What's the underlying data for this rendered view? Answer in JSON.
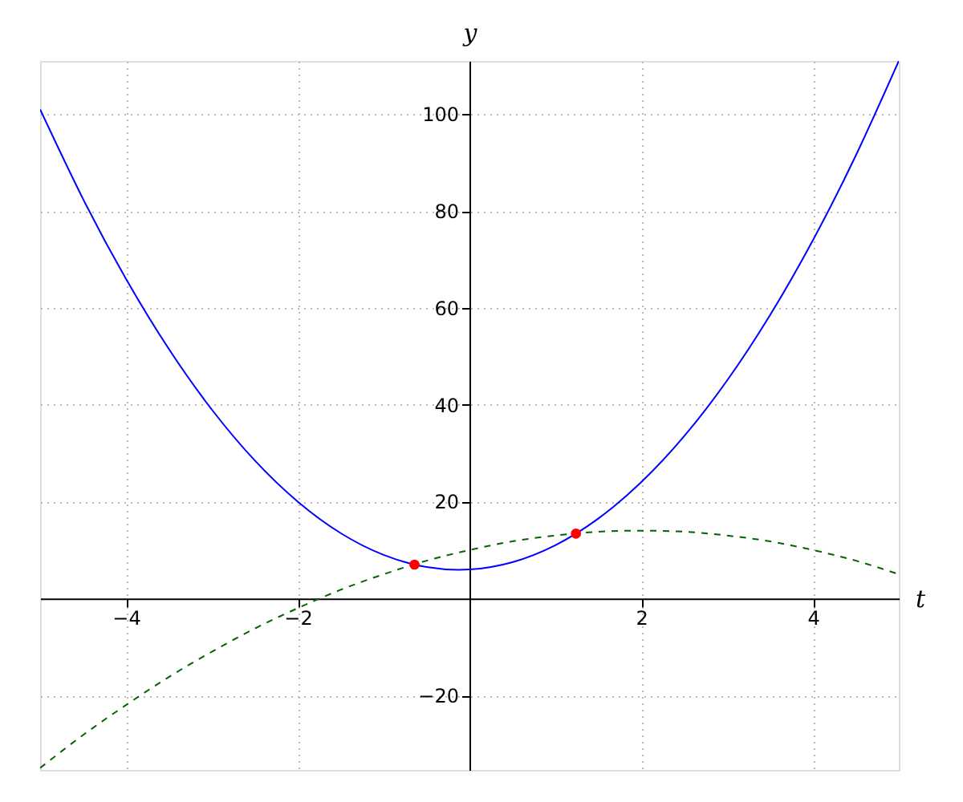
{
  "chart_data": {
    "type": "line",
    "xlabel": "t",
    "ylabel": "y",
    "xlim": [
      -5,
      5
    ],
    "ylim": [
      -35.4,
      111
    ],
    "xticks": [
      -4,
      -2,
      2,
      4
    ],
    "yticks": [
      -20,
      20,
      40,
      60,
      80,
      100
    ],
    "grid": true,
    "series": [
      {
        "color": "#0000ff",
        "line_style": "solid",
        "x": [
          -5,
          -4.5,
          -4,
          -3.5,
          -3,
          -2.5,
          -2,
          -1.5,
          -1,
          -0.5,
          0,
          0.5,
          1,
          1.5,
          2,
          2.5,
          3,
          3.5,
          4,
          4.5,
          5
        ],
        "values": [
          101,
          82.5,
          66,
          51.5,
          39,
          28.5,
          20,
          13.5,
          9,
          6.5,
          6,
          7.5,
          11,
          16.5,
          24,
          33.5,
          45,
          58.5,
          74,
          91.5,
          111
        ]
      },
      {
        "color": "#006400",
        "line_style": "dashed",
        "x": [
          -5,
          -4.5,
          -4,
          -3.5,
          -3,
          -2.5,
          -2,
          -1.5,
          -1,
          -0.5,
          0,
          0.5,
          1,
          1.5,
          2,
          2.5,
          3,
          3.5,
          4,
          4.5,
          5
        ],
        "values": [
          -35,
          -28.2,
          -22,
          -16.2,
          -11,
          -6.2,
          -2,
          1.8,
          5,
          7.8,
          10,
          11.8,
          13,
          13.8,
          14,
          13.8,
          13,
          11.8,
          10,
          7.8,
          5
        ]
      },
      {
        "type": "scatter",
        "color": "#ff0000",
        "marker": "circle",
        "x": [
          -0.64,
          1.24
        ],
        "values": [
          7.0,
          13.4
        ]
      }
    ]
  }
}
